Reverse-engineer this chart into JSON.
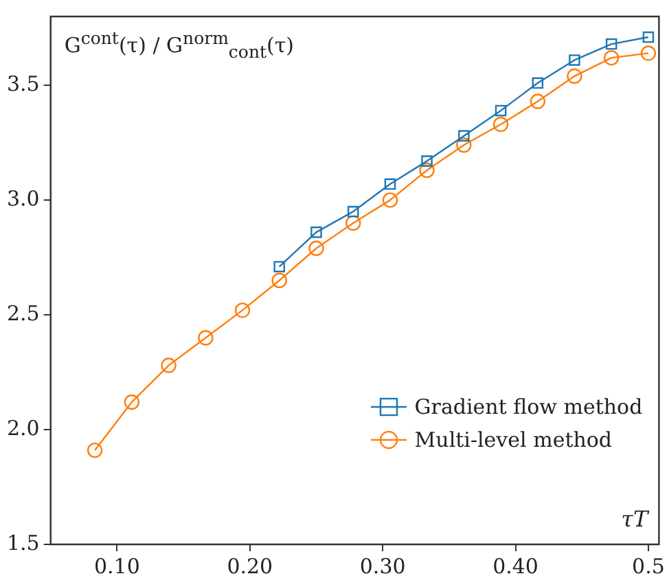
{
  "chart_data": {
    "type": "line",
    "ylabel": "G$^{cont}$(τ) / G$^{norm}$$_{cont}$(τ)",
    "xlabel": "τT",
    "x": [
      0.0833,
      0.1111,
      0.1389,
      0.1667,
      0.1944,
      0.2222,
      0.25,
      0.2778,
      0.3056,
      0.3333,
      0.3611,
      0.3889,
      0.4167,
      0.4444,
      0.4722,
      0.5
    ],
    "series": [
      {
        "name": "Gradient flow method",
        "color": "#1f77b4",
        "marker": "square",
        "x": [
          0.2222,
          0.25,
          0.2778,
          0.3056,
          0.3333,
          0.3611,
          0.3889,
          0.4167,
          0.4444,
          0.4722,
          0.5
        ],
        "values": [
          2.71,
          2.86,
          2.95,
          3.07,
          3.17,
          3.28,
          3.39,
          3.51,
          3.61,
          3.68,
          3.71
        ]
      },
      {
        "name": "Multi-level method",
        "color": "#ff7f0e",
        "marker": "circle",
        "values": [
          1.91,
          2.12,
          2.28,
          2.4,
          2.52,
          2.65,
          2.79,
          2.9,
          3.0,
          3.13,
          3.24,
          3.33,
          3.43,
          3.54,
          3.62,
          3.64
        ]
      }
    ],
    "xlim": [
      0.05,
      0.508
    ],
    "xticks": [
      {
        "value": 0.1,
        "label": "0.10"
      },
      {
        "value": 0.2,
        "label": "0.20"
      },
      {
        "value": 0.3,
        "label": "0.30"
      },
      {
        "value": 0.4,
        "label": "0.40"
      },
      {
        "value": 0.5,
        "label": "0.5"
      }
    ],
    "ylim": [
      1.5,
      3.8
    ],
    "yticks": [
      {
        "value": 1.5,
        "label": "1.5"
      },
      {
        "value": 2,
        "label": "2.0"
      },
      {
        "value": 2.5,
        "label": "2.5"
      },
      {
        "value": 3,
        "label": "3.0"
      },
      {
        "value": 3.5,
        "label": "3.5"
      }
    ],
    "grid": false,
    "legend": "bottom right",
    "line_style": "solid"
  }
}
